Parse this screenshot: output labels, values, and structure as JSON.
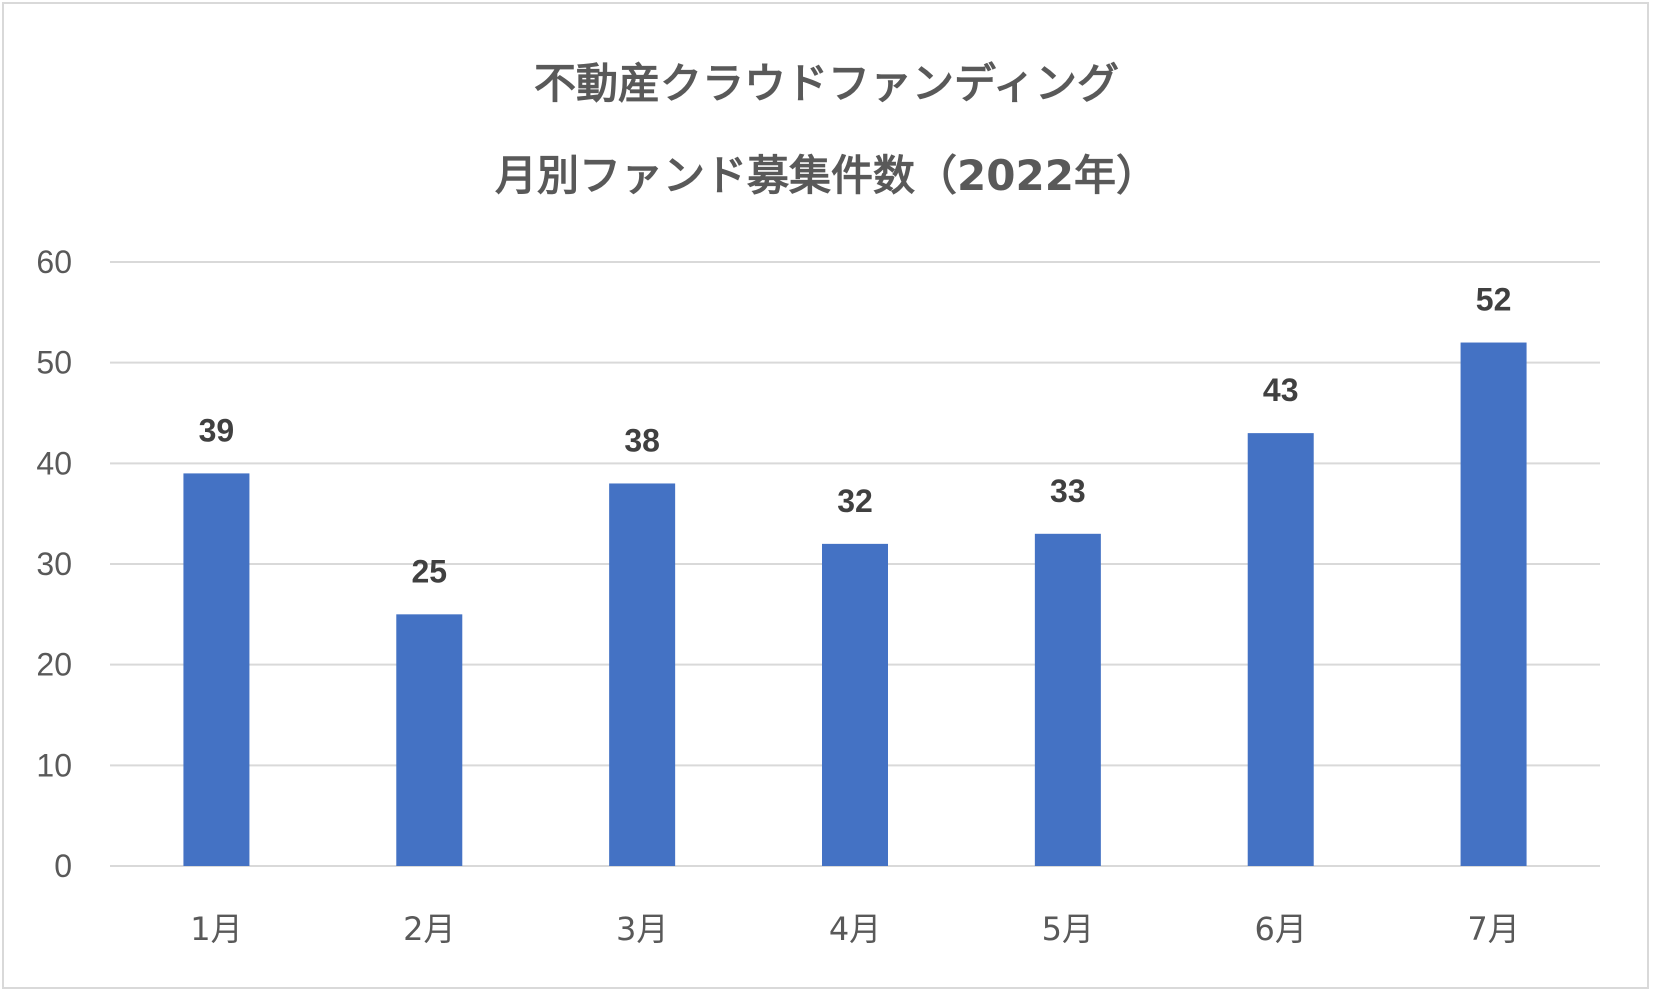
{
  "chart_data": {
    "type": "bar",
    "title_lines": [
      "不動産クラウドファンディング",
      "月別ファンド募集件数（2022年）"
    ],
    "categories": [
      "1月",
      "2月",
      "3月",
      "4月",
      "5月",
      "6月",
      "7月"
    ],
    "values": [
      39,
      25,
      38,
      32,
      33,
      43,
      52
    ],
    "data_labels": [
      "39",
      "25",
      "38",
      "32",
      "33",
      "43",
      "52"
    ],
    "y_ticks": [
      "0",
      "10",
      "20",
      "30",
      "40",
      "50",
      "60"
    ],
    "ylim": [
      0,
      60
    ],
    "grid": true,
    "legend": "none",
    "colors": {
      "bar": "#4472c4",
      "grid": "#d9d9d9",
      "text": "#595959",
      "label": "#404040"
    }
  }
}
